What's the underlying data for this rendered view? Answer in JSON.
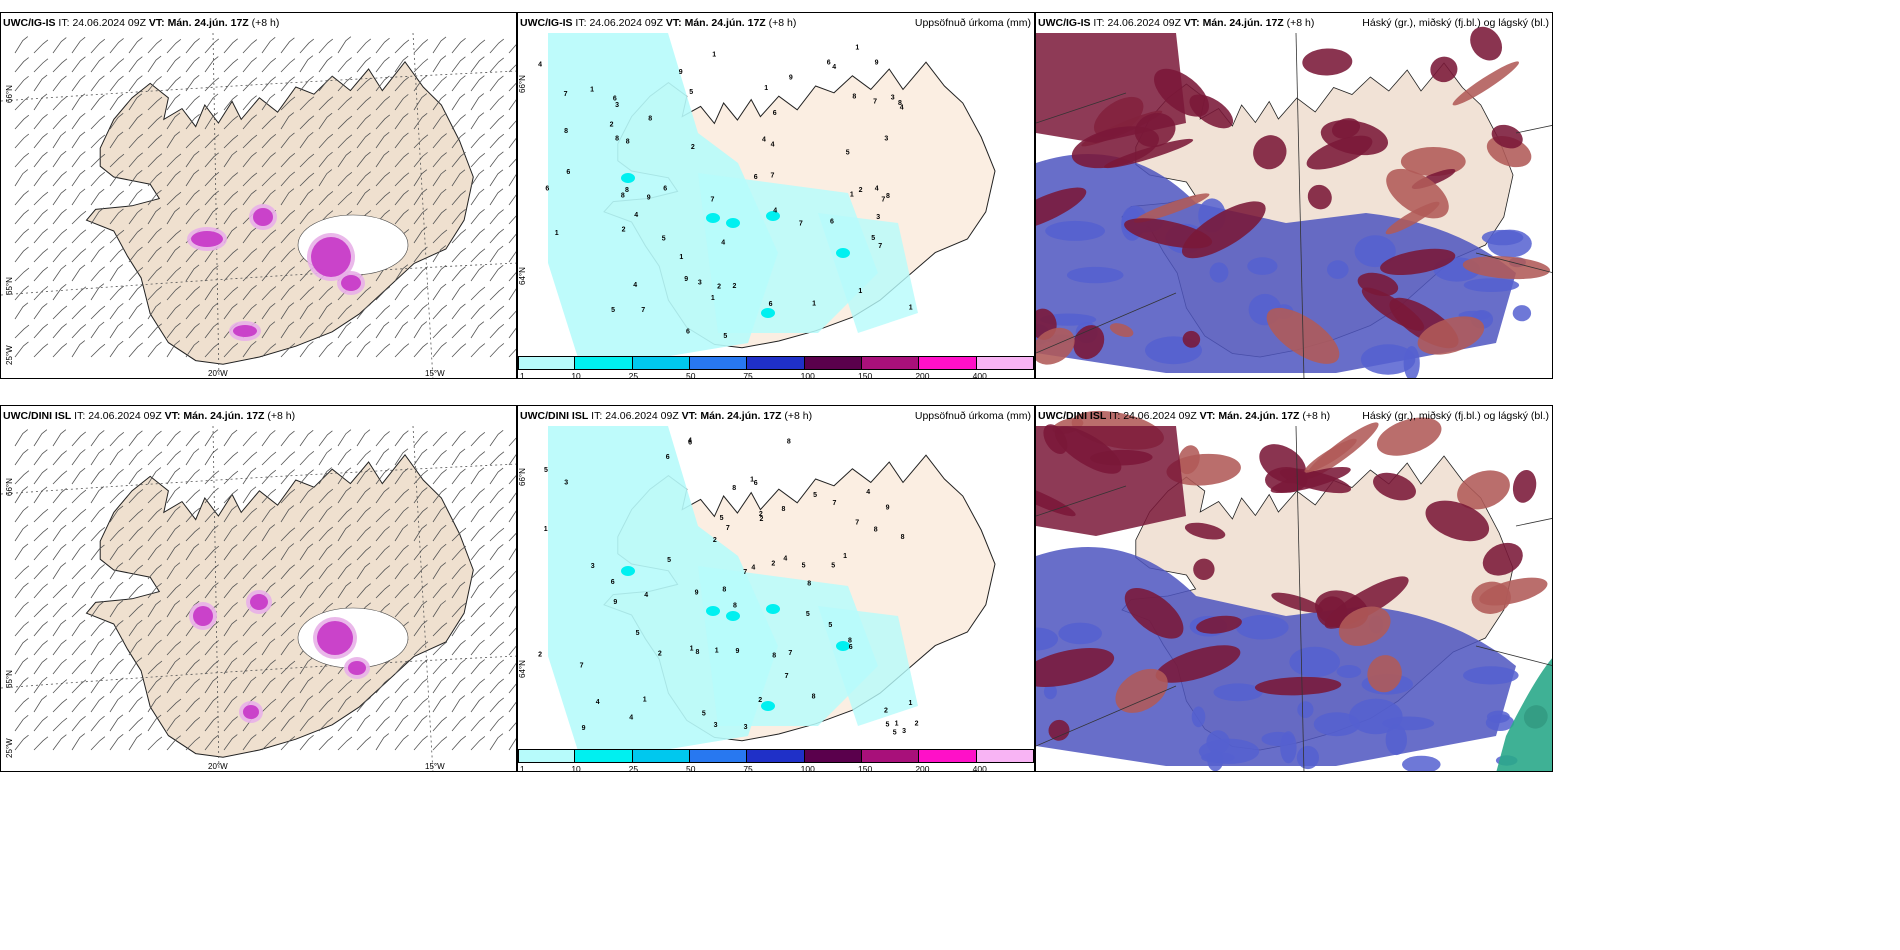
{
  "rows": [
    {
      "model": "UWC/IG-IS",
      "it_label": "IT:",
      "it_value": "24.06.2024 09Z",
      "vt_label": "VT:",
      "vt_value": "Mán. 24.jún. 17Z",
      "lead": "(+8 h)"
    },
    {
      "model": "UWC/DINI ISL",
      "it_label": "IT:",
      "it_value": "24.06.2024 09Z",
      "vt_label": "VT:",
      "vt_value": "Mán. 24.jún. 17Z",
      "lead": "(+8 h)"
    }
  ],
  "precip_title": "Uppsöfnuð úrkoma (mm)",
  "cloud_title": "Háský (gr.), miðský (fj.bl.) og lágský (bl.)",
  "colorbar": {
    "ticks": [
      "1",
      "10",
      "25",
      "50",
      "75",
      "100",
      "150",
      "200",
      "400"
    ],
    "colors": [
      "#b7fbfb",
      "#00f0f0",
      "#00c8ee",
      "#2878f0",
      "#1f30c8",
      "#5a004c",
      "#a8107a",
      "#ff10c8",
      "#f8b4f4"
    ]
  },
  "axes": {
    "lat_66": "66°N",
    "lat_65": "65°N",
    "lat_64": "64°N",
    "lon_25": "25°W",
    "lon_20": "20°W",
    "lon_15": "15°W",
    "lat_66_short": "66°N",
    "lat_64_short": "64°N"
  },
  "land_color": "#efe0cf",
  "accent_magenta": "#c83cc8"
}
